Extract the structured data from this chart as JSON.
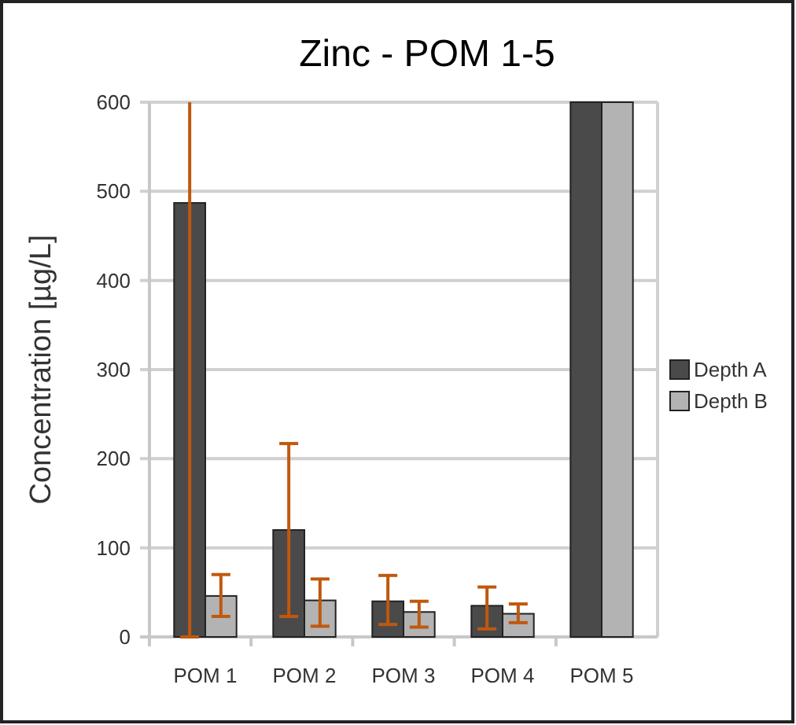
{
  "chart_data": {
    "type": "bar",
    "title": "Zinc - POM 1-5",
    "ylabel": "Concentration [µg/L]",
    "categories": [
      "POM 1",
      "POM 2",
      "POM 3",
      "POM 4",
      "POM 5"
    ],
    "series": [
      {
        "name": "Depth A",
        "color": "#4a4a4a",
        "values": [
          487,
          120,
          40,
          35,
          600
        ],
        "errors": [
          [
            0,
            600
          ],
          [
            23,
            217
          ],
          [
            14,
            69
          ],
          [
            9,
            56
          ],
          null
        ]
      },
      {
        "name": "Depth B",
        "color": "#b3b3b3",
        "values": [
          46,
          41,
          28,
          26,
          600
        ],
        "errors": [
          [
            23,
            70
          ],
          [
            12,
            65
          ],
          [
            11,
            40
          ],
          [
            16,
            37
          ],
          null
        ]
      }
    ],
    "ylim": [
      0,
      600
    ],
    "yticks": [
      0,
      100,
      200,
      300,
      400,
      500,
      600
    ],
    "grid": "y",
    "legend": "right"
  }
}
